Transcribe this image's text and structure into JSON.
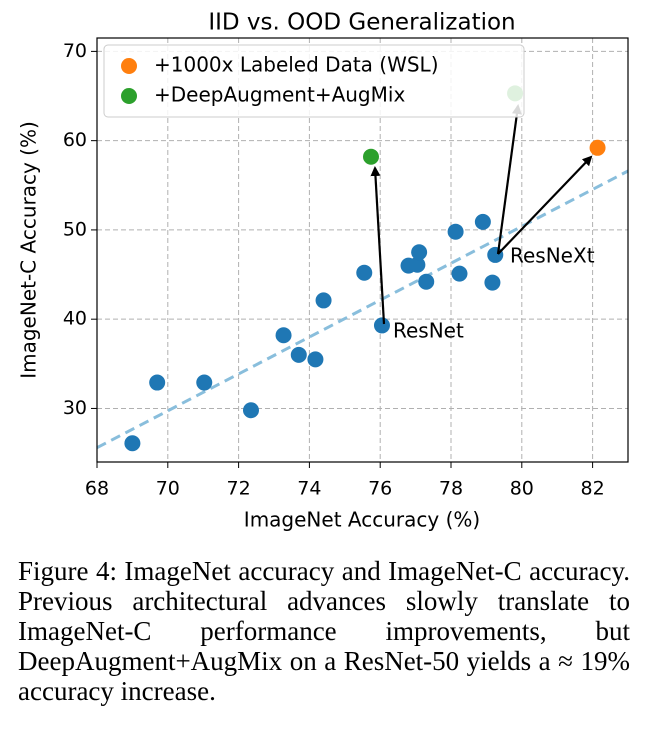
{
  "chart_data": {
    "type": "scatter",
    "title": "IID vs. OOD Generalization",
    "x_label": "ImageNet Accuracy (%)",
    "y_label": "ImageNet-C Accuracy (%)",
    "xlim": [
      68,
      83
    ],
    "ylim": [
      24,
      71.5
    ],
    "xticks": [
      68,
      70,
      72,
      74,
      76,
      78,
      80,
      82
    ],
    "yticks": [
      30,
      40,
      50,
      60,
      70
    ],
    "grid": true,
    "legend": "upper left",
    "series": [
      {
        "color": "#1f77b4",
        "x": [
          69.0,
          69.7,
          71.03,
          72.35,
          73.27,
          73.7,
          74.17,
          74.4,
          75.55,
          76.05,
          76.8,
          77.05,
          77.1,
          77.3,
          78.13,
          78.24,
          78.9,
          79.17,
          79.25
        ],
        "values": [
          26.1,
          32.9,
          32.9,
          29.8,
          38.2,
          36.0,
          35.5,
          42.1,
          45.2,
          39.3,
          46.0,
          46.1,
          47.5,
          44.2,
          49.8,
          45.1,
          50.9,
          44.1,
          47.2
        ]
      },
      {
        "name": "+1000x Labeled Data (WSL)",
        "color": "#ff7f0e",
        "x": [
          82.14
        ],
        "values": [
          59.2
        ]
      },
      {
        "name": "+DeepAugment+AugMix",
        "color": "#2ca02c",
        "x": [
          75.74,
          79.81
        ],
        "values": [
          58.2,
          65.3
        ]
      }
    ],
    "trend": {
      "color": "#89bedc",
      "x": [
        68,
        83
      ],
      "values": [
        25.6,
        56.6
      ]
    },
    "annotations": [
      "ResNet",
      "ResNeXt"
    ]
  },
  "caption": "Figure 4: ImageNet accuracy and ImageNet-C accuracy. Previous architectural advances slowly translate to ImageNet-C performance improvements, but DeepAugment+AugMix on a ResNet-50 yields a ≈ 19% accuracy increase."
}
